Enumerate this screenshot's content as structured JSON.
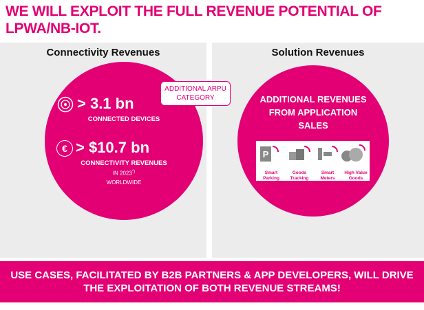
{
  "title": "WE WILL EXPLOIT THE FULL REVENUE POTENTIAL OF LPWA/NB-IOT.",
  "left": {
    "heading": "Connectivity Revenues",
    "stat1": {
      "value": "> 3.1 bn",
      "label": "CONNECTED DEVICES"
    },
    "stat2": {
      "icon": "€",
      "value": "> $10.7 bn",
      "label": "CONNECTIVITY REVENUES",
      "year": "IN 2023",
      "note": "*)",
      "region": "WORLDWIDE"
    }
  },
  "badge": "ADDITIONAL ARPU CATEGORY",
  "right": {
    "heading": "Solution Revenues",
    "text": "ADDITIONAL REVENUES FROM APPLICATION SALES",
    "apps": [
      "Smart Parking",
      "Goods Tracking",
      "Smart Meters",
      "High Value Goods Tracking"
    ]
  },
  "footer": "USE CASES, FACILITATED BY B2B PARTNERS & APP DEVELOPERS, WILL DRIVE THE EXPLOITATION OF BOTH REVENUE STREAMS!"
}
